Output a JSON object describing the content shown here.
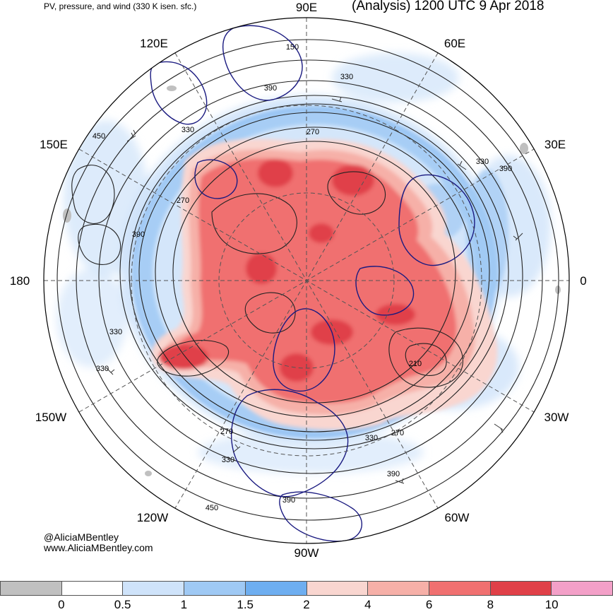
{
  "header": {
    "title_left": "PV, pressure, and wind (330 K isen. sfc.)",
    "title_right": "(Analysis) 1200 UTC 9 Apr 2018"
  },
  "credits": {
    "twitter": "@AliciaMBentley",
    "website": "www.AliciaMBentley.com"
  },
  "longitude_labels": {
    "top": "90E",
    "upper_left": "120E",
    "upper_right": "60E",
    "left_upper": "150E",
    "right_upper": "30E",
    "left": "180",
    "right": "0",
    "left_lower": "150W",
    "right_lower": "30W",
    "lower_left": "120W",
    "lower_right": "60W",
    "bottom": "90W"
  },
  "contour_labels": [
    "150",
    "330",
    "390",
    "330",
    "270",
    "450",
    "330",
    "270",
    "390",
    "390",
    "330",
    "330",
    "390",
    "210",
    "270",
    "270",
    "330",
    "330",
    "390",
    "390",
    "450"
  ],
  "colorbar": {
    "colors": [
      "#c0c0c0",
      "#ffffff",
      "#cfe3fa",
      "#9fc9f4",
      "#6eaef0",
      "#f9d6d0",
      "#f6b0a8",
      "#f07070",
      "#e04048",
      "#f3a0c8"
    ],
    "ticks": [
      "0",
      "0.5",
      "1",
      "1.5",
      "2",
      "4",
      "6",
      "8",
      "10"
    ]
  },
  "colors": {
    "coastline": "#1a1a80",
    "isobar": "#222222",
    "high_pv": "#f07070",
    "mid_pv": "#f6b0a8",
    "low_pv_blue": "#9fc9f4",
    "pale_blue": "#cfe3fa"
  }
}
